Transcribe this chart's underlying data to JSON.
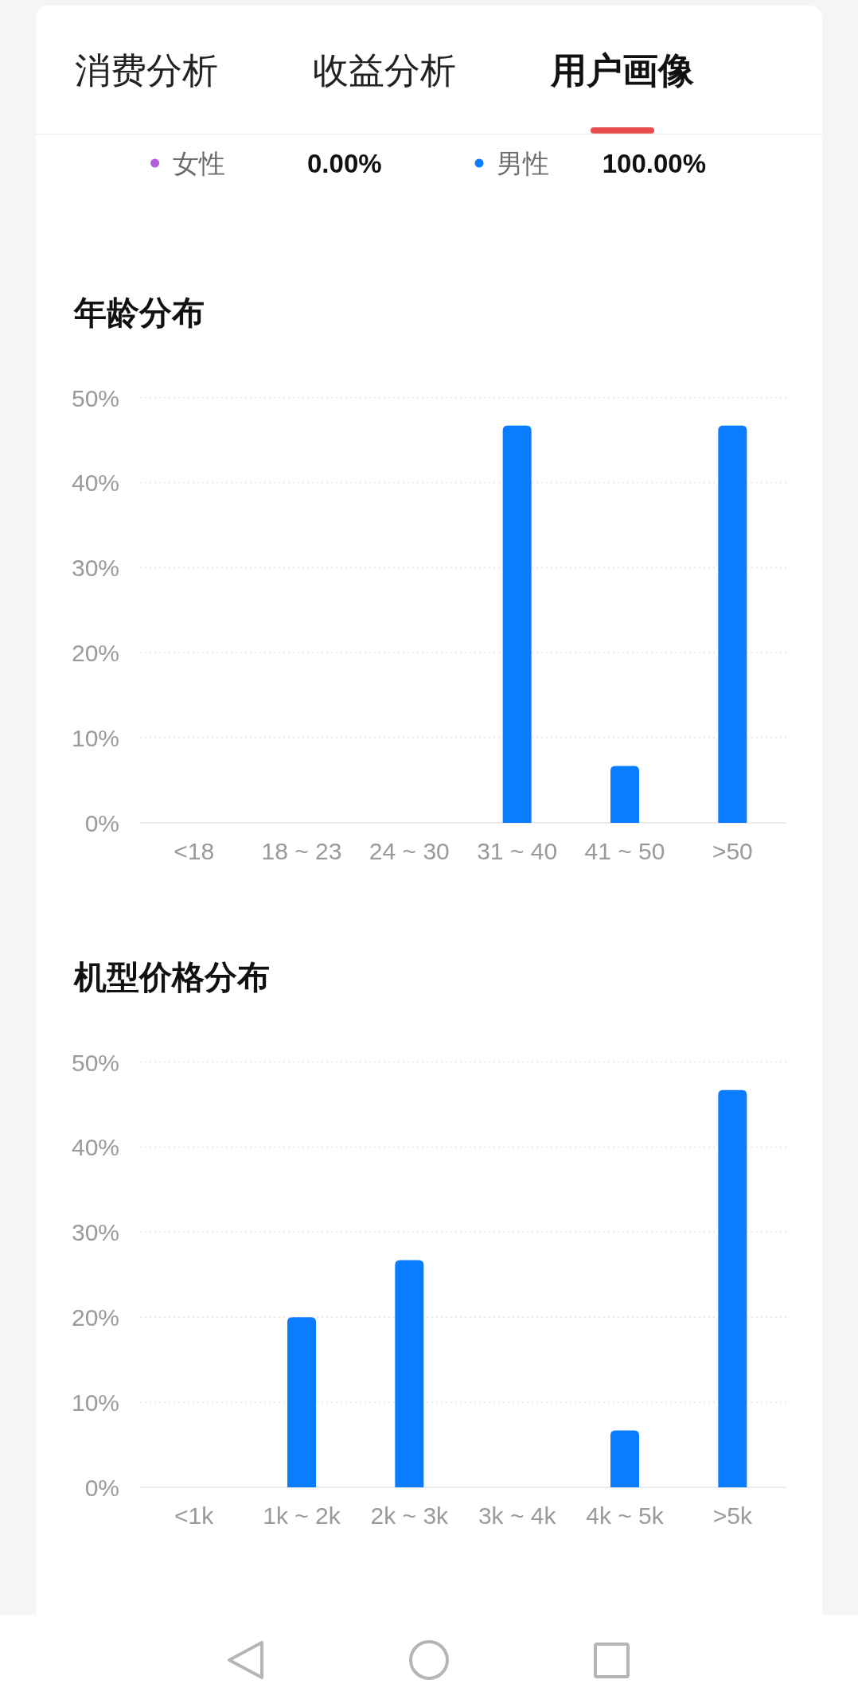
{
  "chart_data": [
    {
      "type": "other",
      "annotations": [
        "消费分析",
        "收益分析",
        "用户画像"
      ],
      "categories": [
        "女性",
        "男性"
      ],
      "value_labels": [
        "0.00%",
        "100.00%"
      ],
      "colors": [
        "#b25de0",
        "#0a7cff"
      ]
    },
    {
      "type": "bar",
      "title": "年龄分布",
      "categories": [
        "<18",
        "18 ~ 23",
        "24 ~ 30",
        "31 ~ 40",
        "41 ~ 50",
        ">50"
      ],
      "values": [
        0,
        0,
        0,
        46.7,
        6.7,
        46.7
      ],
      "color": "#0a7cff",
      "ylim": [
        0,
        50
      ],
      "yticks": [
        {
          "value": 0,
          "label": "0%"
        },
        {
          "value": 10,
          "label": "10%"
        },
        {
          "value": 20,
          "label": "20%"
        },
        {
          "value": 30,
          "label": "30%"
        },
        {
          "value": 40,
          "label": "40%"
        },
        {
          "value": 50,
          "label": "50%"
        }
      ],
      "grid": "y"
    },
    {
      "type": "bar",
      "title": "机型价格分布",
      "categories": [
        "<1k",
        "1k ~ 2k",
        "2k ~ 3k",
        "3k ~ 4k",
        "4k ~ 5k",
        ">5k"
      ],
      "values": [
        0,
        20,
        26.7,
        0,
        6.7,
        46.7
      ],
      "color": "#0a7cff",
      "ylim": [
        0,
        50
      ],
      "yticks": [
        {
          "value": 0,
          "label": "0%"
        },
        {
          "value": 10,
          "label": "10%"
        },
        {
          "value": 20,
          "label": "20%"
        },
        {
          "value": 30,
          "label": "30%"
        },
        {
          "value": 40,
          "label": "40%"
        },
        {
          "value": 50,
          "label": "50%"
        }
      ],
      "grid": "y"
    }
  ]
}
